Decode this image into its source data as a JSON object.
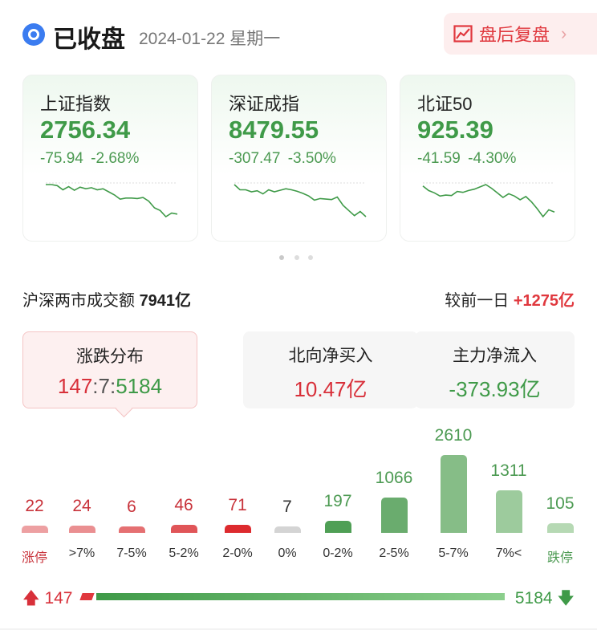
{
  "header": {
    "status": "已收盘",
    "date": "2024-01-22 星期一",
    "review_button": "盘后复盘"
  },
  "indices": [
    {
      "name": "上证指数",
      "price": "2756.34",
      "change": "-75.94",
      "pct": "-2.68%",
      "sparkline": [
        100,
        100,
        99.8,
        99,
        99.6,
        98.9,
        99.5,
        99.2,
        99.4,
        99,
        99.2,
        98.6,
        98,
        97.2,
        97.4,
        97.4,
        97.3,
        97.5,
        96.8,
        95.5,
        95,
        93.8,
        94.5,
        94.3
      ]
    },
    {
      "name": "深证成指",
      "price": "8479.55",
      "change": "-307.47",
      "pct": "-3.50%",
      "sparkline": [
        100,
        99,
        99,
        98.6,
        98.8,
        98.2,
        99,
        98.6,
        98.9,
        99.2,
        99,
        98.7,
        98.3,
        97.8,
        97,
        97.3,
        97.2,
        97.1,
        97.6,
        96,
        95,
        94,
        94.8,
        93.8
      ]
    },
    {
      "name": "北证50",
      "price": "925.39",
      "change": "-41.59",
      "pct": "-4.30%",
      "sparkline": [
        100,
        99,
        98.5,
        97.8,
        98,
        97.9,
        98.8,
        98.6,
        99,
        99.3,
        99.8,
        100.3,
        99.5,
        98.5,
        97.5,
        98.3,
        97.8,
        97,
        97.7,
        96.5,
        95,
        93.3,
        94.8,
        94.3
      ]
    }
  ],
  "turnover": {
    "label": "沪深两市成交额",
    "value": "7941亿",
    "compare_label": "较前一日",
    "compare_value": "+1275亿"
  },
  "stats": [
    {
      "title": "涨跌分布",
      "up": "147",
      "flat": "7",
      "down": "5184"
    },
    {
      "title": "北向净买入",
      "value": "10.47亿"
    },
    {
      "title": "主力净流入",
      "value": "-373.93亿"
    }
  ],
  "distribution": {
    "labels": [
      "涨停",
      ">7%",
      "7-5%",
      "5-2%",
      "2-0%",
      "0%",
      "0-2%",
      "2-5%",
      "5-7%",
      "7%<",
      "跌停"
    ],
    "values": [
      "22",
      "24",
      "6",
      "46",
      "71",
      "7",
      "197",
      "1066",
      "2610",
      "1311",
      "105"
    ],
    "bar_colors": [
      "#eda0a2",
      "#ea8f91",
      "#e57072",
      "#e05558",
      "#dd2a2e",
      "#d4d4d4",
      "#4f9f55",
      "#6aac6e",
      "#86bd87",
      "#9dcb9d",
      "#b6d9b4"
    ],
    "value_colors": [
      "#c8323a",
      "#c8323a",
      "#c8323a",
      "#c8323a",
      "#c8323a",
      "#333",
      "#4c9a52",
      "#4c9a52",
      "#4c9a52",
      "#4c9a52",
      "#4c9a52"
    ],
    "label_colors": [
      "#c8323a",
      "#333",
      "#333",
      "#333",
      "#333",
      "#333",
      "#333",
      "#333",
      "#333",
      "#333",
      "#4c9a52"
    ]
  },
  "ratio": {
    "up": "147",
    "down": "5184"
  },
  "colors": {
    "up": "#e0383e",
    "down": "#3f9a48"
  }
}
